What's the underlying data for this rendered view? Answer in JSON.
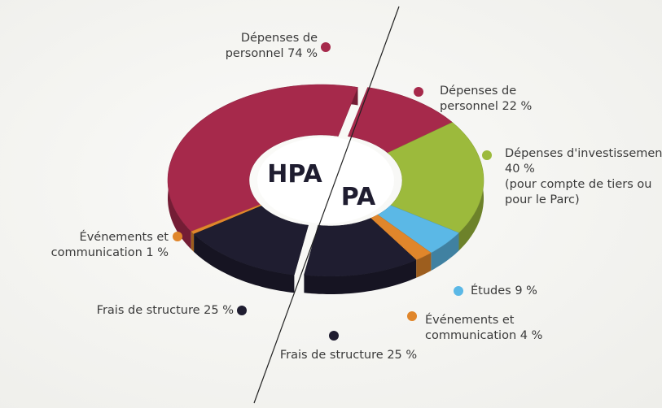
{
  "chart_data": [
    {
      "type": "pie",
      "title": "HPA",
      "categories": [
        "Dépenses de personnel",
        "Événements et communication",
        "Frais de structure"
      ],
      "values": [
        74,
        1,
        25
      ],
      "value_labels": [
        "74 %",
        "1 %",
        "25 %"
      ],
      "colors": [
        "#a6294b",
        "#e0862b",
        "#1f1d30"
      ]
    },
    {
      "type": "pie",
      "title": "PA",
      "categories": [
        "Dépenses de personnel",
        "Dépenses d'investissement",
        "Études",
        "Événements et communication",
        "Frais de structure"
      ],
      "values": [
        22,
        40,
        9,
        4,
        25
      ],
      "value_labels": [
        "22 %",
        "40 %",
        "9 %",
        "4 %",
        "25 %"
      ],
      "colors": [
        "#a6294b",
        "#9cba3c",
        "#5bb8e6",
        "#e0862b",
        "#1f1d30"
      ],
      "annotation": "(pour compte de tiers ou pour le Parc)"
    }
  ]
}
